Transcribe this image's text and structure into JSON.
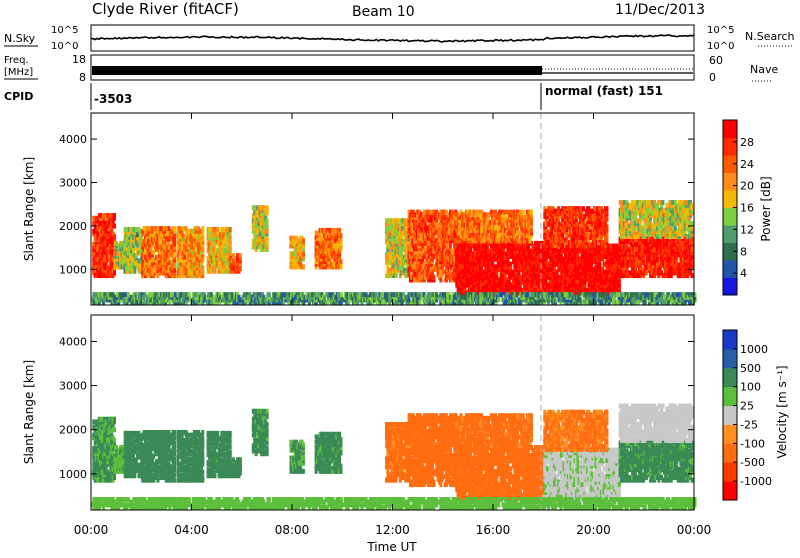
{
  "header": {
    "station": "Clyde River (fitACF)",
    "beam": "Beam 10",
    "date": "11/Dec/2013"
  },
  "noise_panel": {
    "left_label": "N.Sky",
    "right_label": "N.Search",
    "left_ticks": [
      "10^5",
      "10^0"
    ],
    "right_ticks": [
      "10^5",
      "10^0"
    ]
  },
  "freq_panel": {
    "left_label_1": "Freq.",
    "left_label_2": "[MHz]",
    "left_ticks": [
      "18",
      "8"
    ],
    "right_label": "Nave",
    "right_ticks": [
      "60",
      "0"
    ]
  },
  "cpid_panel": {
    "label": "CPID",
    "first_mode": "-3503",
    "second_mode": "normal (fast) 151"
  },
  "x_axis": {
    "label": "Time UT",
    "ticks": [
      "00:00",
      "04:00",
      "08:00",
      "12:00",
      "16:00",
      "20:00",
      "00:00"
    ]
  },
  "power_panel": {
    "ylabel": "Slant Range [km]",
    "yticks": [
      "1000",
      "2000",
      "3000",
      "4000"
    ],
    "colorbar_label": "Power [dB]",
    "colorbar_ticks": [
      "4",
      "8",
      "12",
      "16",
      "20",
      "24",
      "28"
    ]
  },
  "velocity_panel": {
    "ylabel": "Slant Range [km]",
    "yticks": [
      "1000",
      "2000",
      "3000",
      "4000"
    ],
    "colorbar_label": "Velocity [m s⁻¹]",
    "colorbar_ticks": [
      "1000",
      "500",
      "100",
      "25",
      "-25",
      "-100",
      "-500",
      "-1000"
    ]
  },
  "chart_data": {
    "type": "heatmap",
    "title": "Clyde River (fitACF)",
    "x_axis": {
      "label": "Time UT",
      "range_hours": [
        0,
        24
      ]
    },
    "y_axis": {
      "label": "Slant Range [km]",
      "range_km": [
        180,
        4600
      ]
    },
    "mode_change_hour": 18,
    "power_colors": [
      "#1515e6",
      "#2255aa",
      "#2f6f4f",
      "#4f9d6b",
      "#7fd040",
      "#f5b800",
      "#ff8c1a",
      "#ff5a00",
      "#ff2a00",
      "#ff0000"
    ],
    "velocity_colors": [
      "#1a38c8",
      "#285fa8",
      "#3a8a55",
      "#5cbf3c",
      "#c8c8c8",
      "#ff9020",
      "#ff6d10",
      "#ff3a00",
      "#ff0000"
    ],
    "patches": [
      {
        "t0": 0.05,
        "t1": 0.9,
        "r0": 800,
        "r1": 2200,
        "power": 24,
        "velocity": 120
      },
      {
        "t0": 0.9,
        "t1": 1.3,
        "r0": 1000,
        "r1": 1600,
        "power": 14,
        "velocity": 80
      },
      {
        "t0": 1.3,
        "t1": 2.0,
        "r0": 900,
        "r1": 1900,
        "power": 12,
        "velocity": 300
      },
      {
        "t0": 2.0,
        "t1": 3.3,
        "r0": 800,
        "r1": 1900,
        "power": 20,
        "velocity": 250
      },
      {
        "t0": 3.4,
        "t1": 4.4,
        "r0": 800,
        "r1": 1900,
        "power": 18,
        "velocity": 200
      },
      {
        "t0": 4.6,
        "t1": 5.5,
        "r0": 900,
        "r1": 1900,
        "power": 16,
        "velocity": 180
      },
      {
        "t0": 5.5,
        "t1": 5.9,
        "r0": 900,
        "r1": 1300,
        "power": 22,
        "velocity": 250
      },
      {
        "t0": 6.4,
        "t1": 7.0,
        "r0": 1400,
        "r1": 2400,
        "power": 14,
        "velocity": 150
      },
      {
        "t0": 7.9,
        "t1": 8.4,
        "r0": 1000,
        "r1": 1700,
        "power": 16,
        "velocity": 120
      },
      {
        "t0": 8.9,
        "t1": 9.9,
        "r0": 1000,
        "r1": 1900,
        "power": 20,
        "velocity": 150
      },
      {
        "t0": 11.7,
        "t1": 12.6,
        "r0": 800,
        "r1": 2100,
        "power": 14,
        "velocity": -150
      },
      {
        "t0": 12.6,
        "t1": 14.5,
        "r0": 700,
        "r1": 2300,
        "power": 22,
        "velocity": -300
      },
      {
        "t0": 14.5,
        "t1": 18.0,
        "r0": 400,
        "r1": 1600,
        "power": 28,
        "velocity": -300
      },
      {
        "t0": 14.5,
        "t1": 17.5,
        "r0": 1600,
        "r1": 2300,
        "power": 20,
        "velocity": -150
      },
      {
        "t0": 18.0,
        "t1": 21.0,
        "r0": 400,
        "r1": 1500,
        "power": 28,
        "velocity": 20
      },
      {
        "t0": 18.0,
        "t1": 20.5,
        "r0": 1500,
        "r1": 2400,
        "power": 24,
        "velocity": -120
      },
      {
        "t0": 21.0,
        "t1": 23.9,
        "r0": 800,
        "r1": 1700,
        "power": 26,
        "velocity": 150
      },
      {
        "t0": 21.0,
        "t1": 23.9,
        "r0": 1700,
        "r1": 2500,
        "power": 14,
        "velocity": 10
      },
      {
        "t0": 0.0,
        "t1": 24.0,
        "r0": 180,
        "r1": 420,
        "power": 8,
        "velocity": 60
      }
    ]
  }
}
